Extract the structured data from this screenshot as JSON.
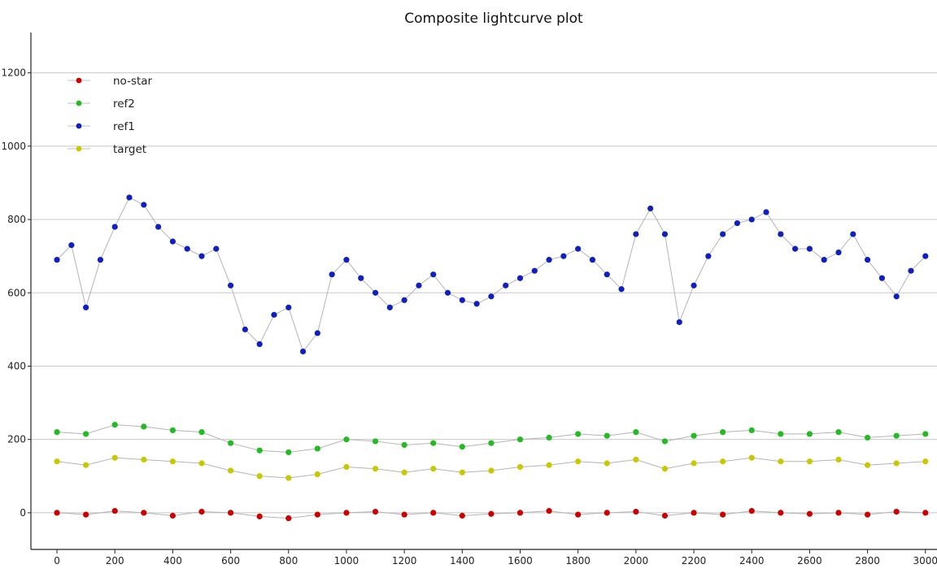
{
  "chart_data": {
    "type": "scatter",
    "title": "Composite lightcurve plot",
    "xlabel": "",
    "ylabel": "",
    "xlim": [
      -90,
      3040
    ],
    "ylim": [
      -100,
      1310
    ],
    "xticks": [
      0,
      200,
      400,
      600,
      800,
      1000,
      1200,
      1400,
      1600,
      1800,
      2000,
      2200,
      2400,
      2600,
      2800,
      3000
    ],
    "yticks": [
      0,
      200,
      400,
      600,
      800,
      1000,
      1200
    ],
    "grid": "horizontal",
    "legend_position": "top-left",
    "series": [
      {
        "name": "no-star",
        "color": "#cc0000",
        "x": [
          0,
          100,
          200,
          300,
          400,
          500,
          600,
          700,
          800,
          900,
          1000,
          1100,
          1200,
          1300,
          1400,
          1500,
          1600,
          1700,
          1800,
          1900,
          2000,
          2100,
          2200,
          2300,
          2400,
          2500,
          2600,
          2700,
          2800,
          2900,
          3000
        ],
        "values": [
          0,
          -5,
          5,
          0,
          -8,
          3,
          0,
          -10,
          -15,
          -5,
          0,
          3,
          -5,
          0,
          -8,
          -3,
          0,
          5,
          -5,
          0,
          3,
          -8,
          0,
          -5,
          5,
          0,
          -3,
          0,
          -5,
          3,
          0
        ]
      },
      {
        "name": "ref2",
        "color": "#22bb22",
        "x": [
          0,
          100,
          200,
          300,
          400,
          500,
          600,
          700,
          800,
          900,
          1000,
          1100,
          1200,
          1300,
          1400,
          1500,
          1600,
          1700,
          1800,
          1900,
          2000,
          2100,
          2200,
          2300,
          2400,
          2500,
          2600,
          2700,
          2800,
          2900,
          3000
        ],
        "values": [
          220,
          215,
          240,
          235,
          225,
          220,
          190,
          170,
          165,
          175,
          200,
          195,
          185,
          190,
          180,
          190,
          200,
          205,
          215,
          210,
          220,
          195,
          210,
          220,
          225,
          215,
          215,
          220,
          205,
          210,
          215
        ]
      },
      {
        "name": "ref1",
        "color": "#1020c0",
        "x": [
          0,
          50,
          100,
          150,
          200,
          250,
          300,
          350,
          400,
          450,
          500,
          550,
          600,
          650,
          700,
          750,
          800,
          850,
          900,
          950,
          1000,
          1050,
          1100,
          1150,
          1200,
          1250,
          1300,
          1350,
          1400,
          1450,
          1500,
          1550,
          1600,
          1650,
          1700,
          1750,
          1800,
          1850,
          1900,
          1950,
          2000,
          2050,
          2100,
          2150,
          2200,
          2250,
          2300,
          2350,
          2400,
          2450,
          2500,
          2550,
          2600,
          2650,
          2700,
          2750,
          2800,
          2850,
          2900,
          2950,
          3000
        ],
        "values": [
          690,
          730,
          560,
          690,
          780,
          860,
          840,
          780,
          740,
          720,
          700,
          720,
          620,
          500,
          460,
          540,
          560,
          440,
          490,
          650,
          690,
          640,
          600,
          560,
          580,
          620,
          650,
          600,
          580,
          570,
          590,
          620,
          640,
          660,
          690,
          700,
          720,
          690,
          650,
          610,
          760,
          830,
          760,
          520,
          620,
          700,
          760,
          790,
          800,
          820,
          760,
          720,
          720,
          690,
          710,
          760,
          690,
          640,
          590,
          660,
          700
        ]
      },
      {
        "name": "target",
        "color": "#c8c800",
        "x": [
          0,
          100,
          200,
          300,
          400,
          500,
          600,
          700,
          800,
          900,
          1000,
          1100,
          1200,
          1300,
          1400,
          1500,
          1600,
          1700,
          1800,
          1900,
          2000,
          2100,
          2200,
          2300,
          2400,
          2500,
          2600,
          2700,
          2800,
          2900,
          3000
        ],
        "values": [
          140,
          130,
          150,
          145,
          140,
          135,
          115,
          100,
          95,
          105,
          125,
          120,
          110,
          120,
          110,
          115,
          125,
          130,
          140,
          135,
          145,
          120,
          135,
          140,
          150,
          140,
          140,
          145,
          130,
          135,
          140
        ]
      }
    ]
  }
}
